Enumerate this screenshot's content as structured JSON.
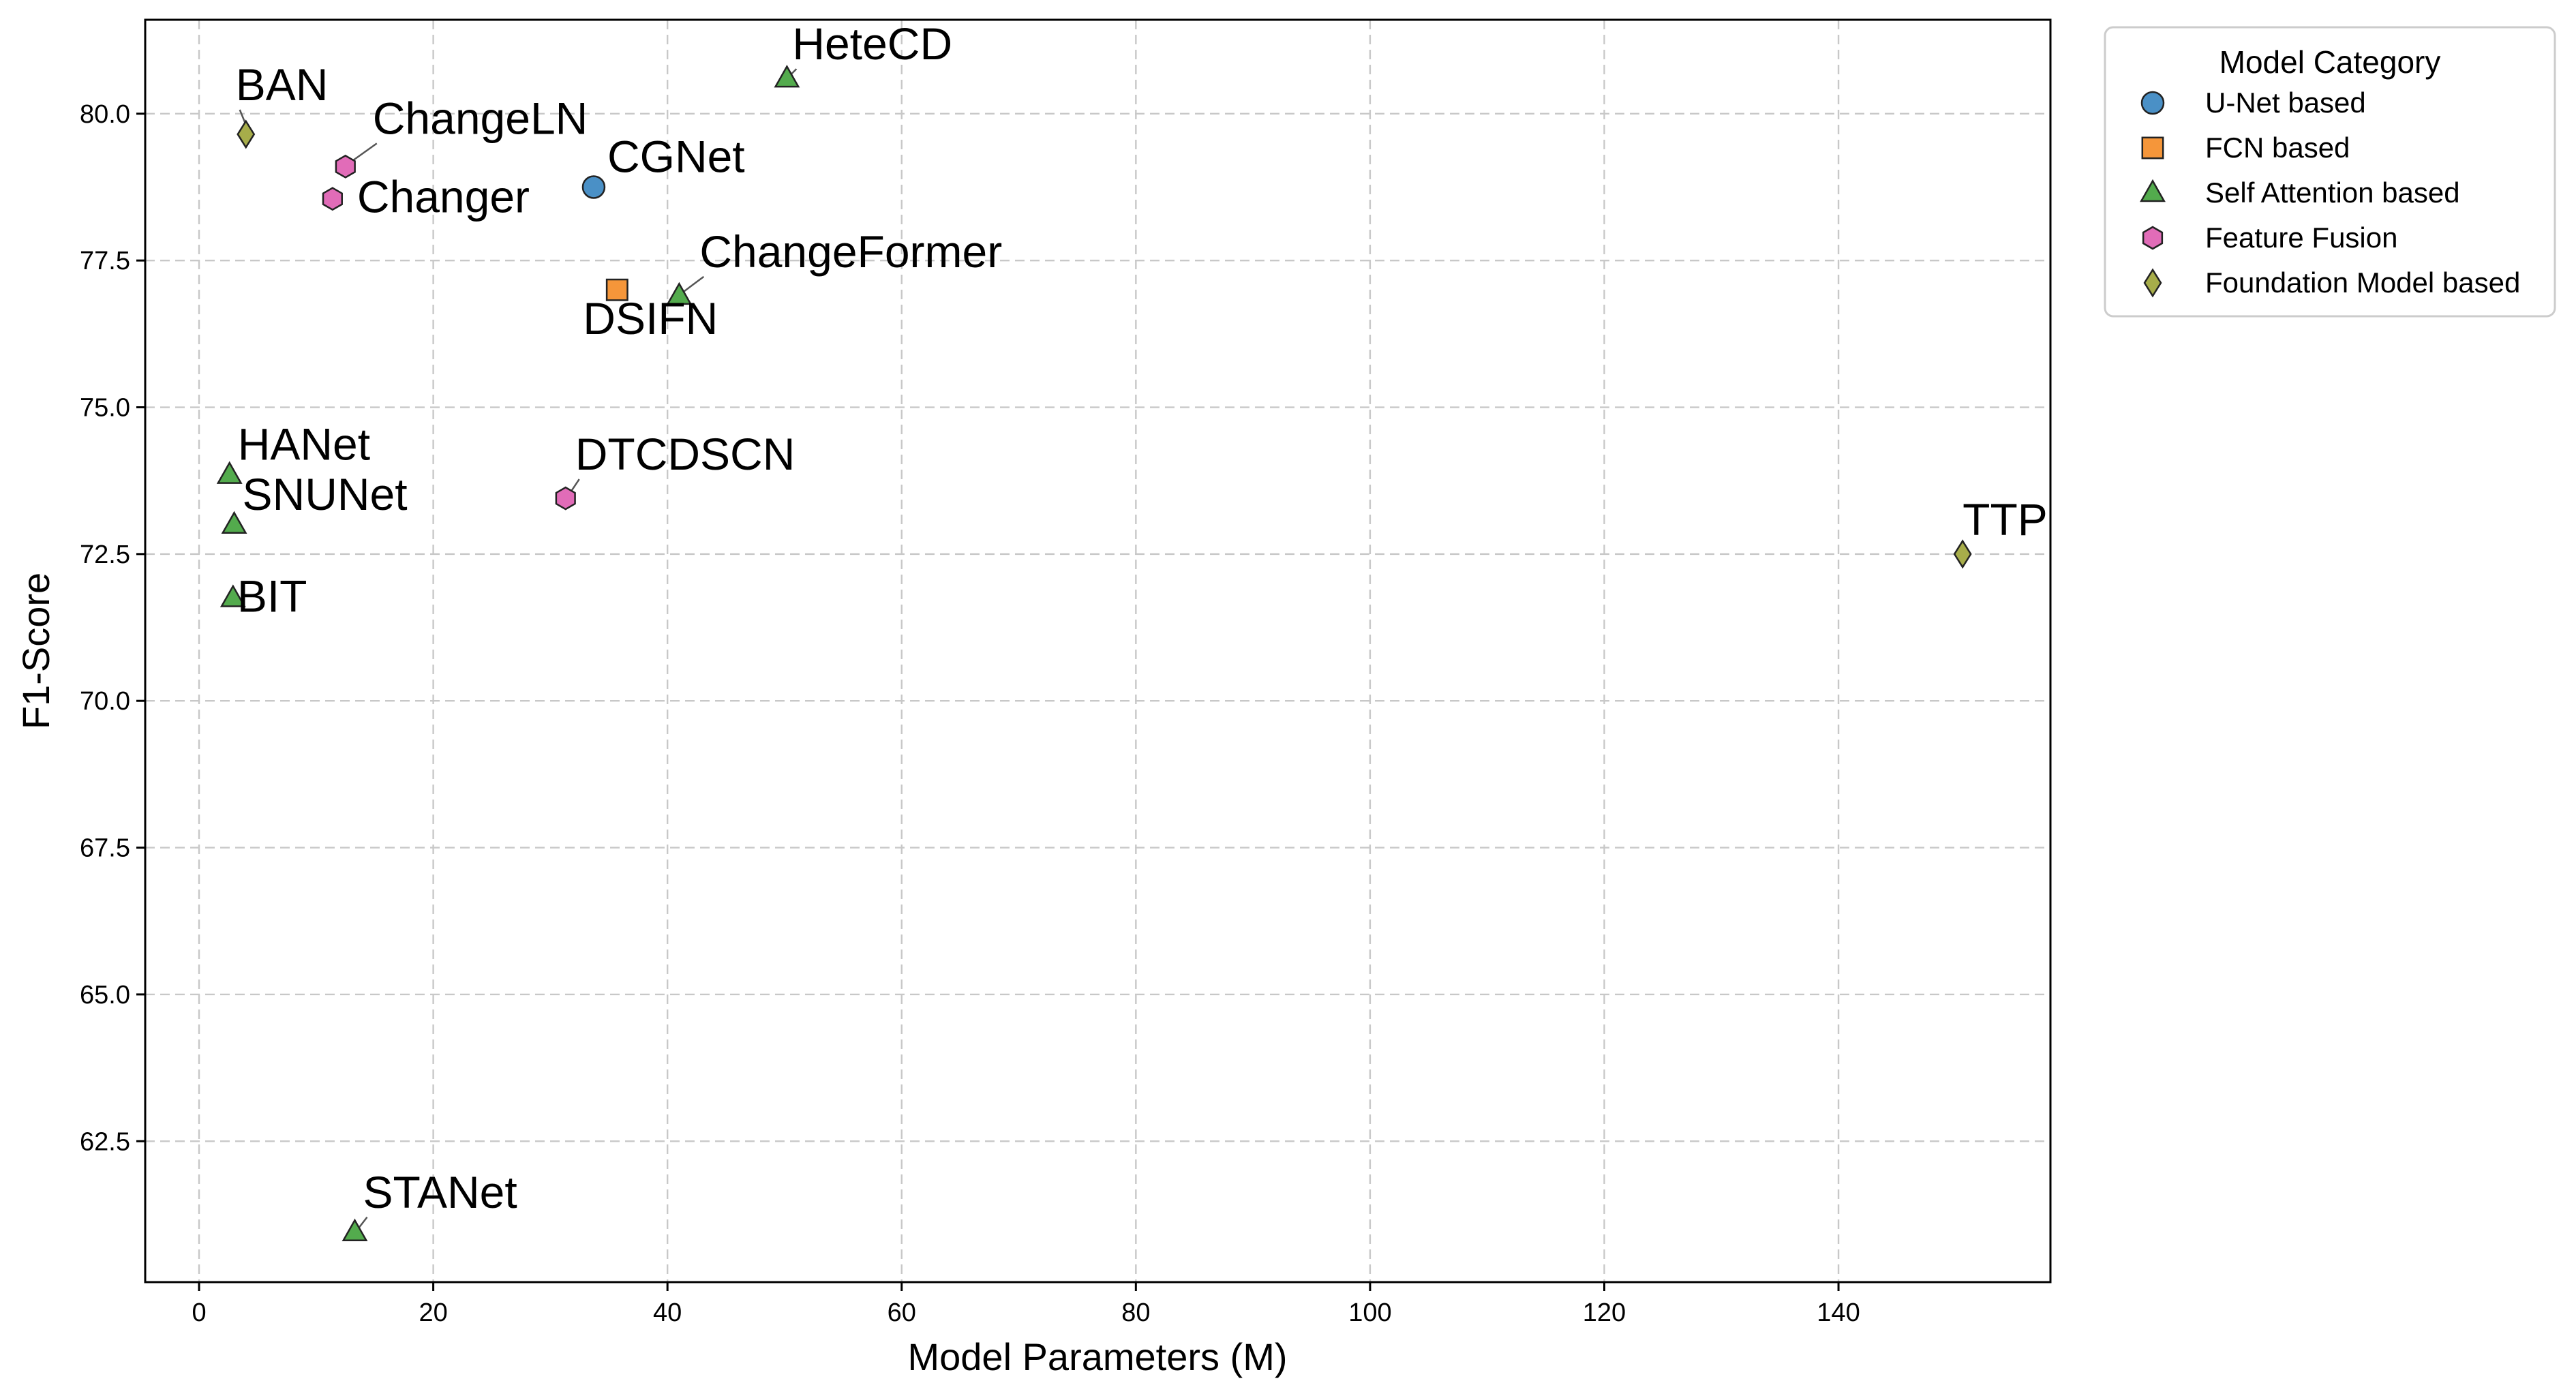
{
  "chart_data": {
    "type": "scatter",
    "title": "",
    "xlabel": "Model Parameters (M)",
    "ylabel": "F1-Score",
    "xlim": [
      -4.6,
      158.1
    ],
    "ylim": [
      60.1,
      81.6
    ],
    "xticks": [
      "0",
      "20",
      "40",
      "60",
      "80",
      "100",
      "120",
      "140"
    ],
    "yticks": [
      "62.5",
      "65.0",
      "67.5",
      "70.0",
      "72.5",
      "75.0",
      "77.5",
      "80.0"
    ],
    "grid": true,
    "legend": {
      "title": "Model Category",
      "placement": "outside-top-right"
    },
    "categories": [
      {
        "name": "U-Net based",
        "marker": "circle",
        "color": "#4a90c6"
      },
      {
        "name": "FCN based",
        "marker": "square",
        "color": "#f5963a"
      },
      {
        "name": "Self Attention based",
        "marker": "triangle",
        "color": "#53ab4d"
      },
      {
        "name": "Feature Fusion",
        "marker": "hexagon",
        "color": "#e16cb8"
      },
      {
        "name": "Foundation Model based",
        "marker": "diamond",
        "color": "#a7ad4a"
      }
    ],
    "points": [
      {
        "label": "HeteCD",
        "x": 50.2,
        "y": 80.6,
        "category": 2
      },
      {
        "label": "BAN",
        "x": 4.0,
        "y": 79.65,
        "category": 4
      },
      {
        "label": "ChangeLN",
        "x": 12.5,
        "y": 79.1,
        "category": 3
      },
      {
        "label": "Changer",
        "x": 11.4,
        "y": 78.55,
        "category": 3
      },
      {
        "label": "CGNet",
        "x": 33.7,
        "y": 78.75,
        "category": 0
      },
      {
        "label": "ChangeFormer",
        "x": 41.0,
        "y": 76.9,
        "category": 2
      },
      {
        "label": "DSIFN",
        "x": 35.7,
        "y": 77.0,
        "category": 1
      },
      {
        "label": "HANet",
        "x": 2.6,
        "y": 73.85,
        "category": 2
      },
      {
        "label": "SNUNet",
        "x": 3.0,
        "y": 73.0,
        "category": 2
      },
      {
        "label": "DTCDSCN",
        "x": 31.3,
        "y": 73.45,
        "category": 3
      },
      {
        "label": "TTP",
        "x": 150.6,
        "y": 72.5,
        "category": 4
      },
      {
        "label": "BIT",
        "x": 2.9,
        "y": 71.75,
        "category": 2
      },
      {
        "label": "STANet",
        "x": 13.3,
        "y": 60.95,
        "category": 2
      }
    ]
  }
}
